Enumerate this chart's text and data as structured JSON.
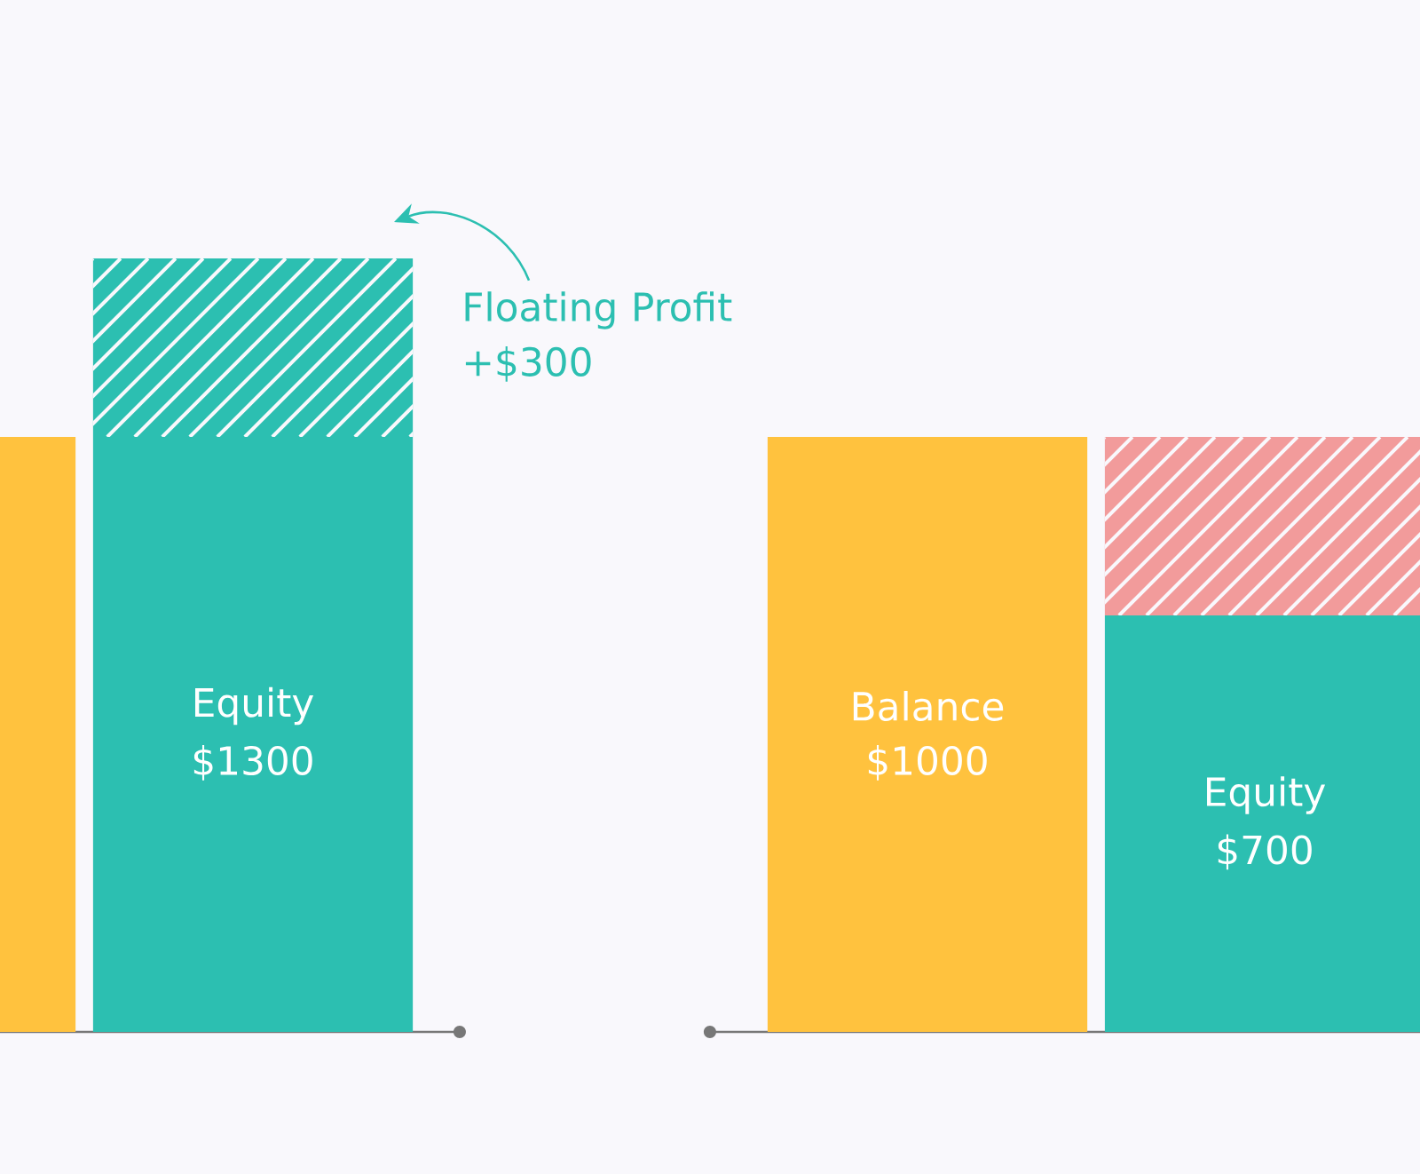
{
  "chart_data": {
    "type": "bar",
    "stacked": true,
    "categories": [
      null,
      "Equity",
      null,
      "Balance",
      "Equity"
    ],
    "series": [
      {
        "colors": [
          "#FFC23E",
          "#2CBFB1",
          "#2CBFB1",
          "#FFC23E",
          "#2CBFB1"
        ],
        "values": [
          1000,
          1000,
          null,
          1000,
          700
        ],
        "value_labels": [
          null,
          null,
          null,
          "$1000",
          "$700"
        ]
      },
      {
        "colors": [
          "#2CBFB1",
          "#2CBFB1",
          "#2CBFB1",
          "#F29B9B",
          "#F29B9B"
        ],
        "values": [
          null,
          300,
          null,
          null,
          300
        ]
      }
    ],
    "totals": [
      null,
      "$1300",
      null,
      null,
      null
    ],
    "annotations": [
      "Floating Profit +$300"
    ]
  }
}
